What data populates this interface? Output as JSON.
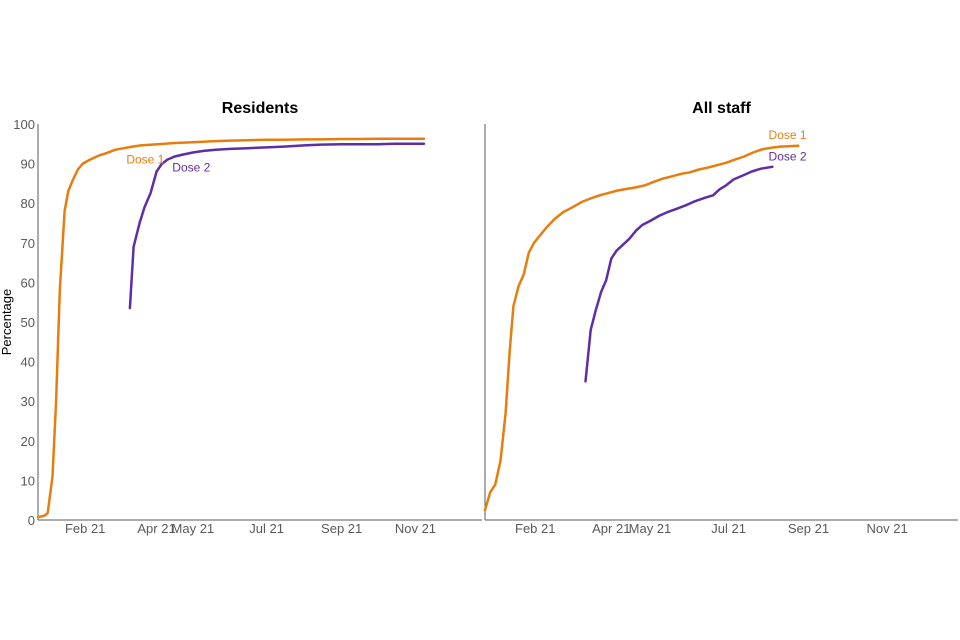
{
  "chart_data": {
    "type": "line",
    "ylabel": "Percentage",
    "ylim": [
      0,
      100
    ],
    "yticks": [
      0,
      10,
      20,
      30,
      40,
      50,
      60,
      70,
      80,
      90,
      100
    ],
    "xticks": [
      {
        "date": "2021-02-01",
        "label": "Feb 21"
      },
      {
        "date": "2021-04-01",
        "label": "Apr 21"
      },
      {
        "date": "2021-05-01",
        "label": "May 21"
      },
      {
        "date": "2021-07-01",
        "label": "Jul 21"
      },
      {
        "date": "2021-09-01",
        "label": "Sep 21"
      },
      {
        "date": "2021-11-01",
        "label": "Nov 21"
      }
    ],
    "xlim": [
      "2020-12-24",
      "2021-12-26"
    ],
    "colors": {
      "dose1": "#E87D0F",
      "dose2": "#5E2EA8"
    },
    "panels": [
      {
        "title": "Residents",
        "series": [
          {
            "name": "Dose 1",
            "color": "#E87D0F",
            "points": [
              [
                "2020-12-24",
                0.7
              ],
              [
                "2020-12-27",
                0.9
              ],
              [
                "2020-12-30",
                1.2
              ],
              [
                "2021-01-01",
                1.8
              ],
              [
                "2021-01-05",
                11.0
              ],
              [
                "2021-01-08",
                30.0
              ],
              [
                "2021-01-11",
                58.0
              ],
              [
                "2021-01-15",
                78.0
              ],
              [
                "2021-01-18",
                83.0
              ],
              [
                "2021-01-22",
                86.0
              ],
              [
                "2021-01-26",
                88.5
              ],
              [
                "2021-01-30",
                90.0
              ],
              [
                "2021-02-05",
                91.0
              ],
              [
                "2021-02-12",
                92.0
              ],
              [
                "2021-02-19",
                92.7
              ],
              [
                "2021-02-26",
                93.5
              ],
              [
                "2021-03-05",
                93.9
              ],
              [
                "2021-03-12",
                94.3
              ],
              [
                "2021-03-19",
                94.6
              ],
              [
                "2021-04-02",
                94.9
              ],
              [
                "2021-04-16",
                95.2
              ],
              [
                "2021-05-01",
                95.4
              ],
              [
                "2021-05-15",
                95.6
              ],
              [
                "2021-06-01",
                95.8
              ],
              [
                "2021-06-15",
                95.9
              ],
              [
                "2021-07-01",
                96.0
              ],
              [
                "2021-07-15",
                96.0
              ],
              [
                "2021-08-01",
                96.1
              ],
              [
                "2021-08-15",
                96.1
              ],
              [
                "2021-09-01",
                96.2
              ],
              [
                "2021-09-15",
                96.2
              ],
              [
                "2021-10-01",
                96.3
              ],
              [
                "2021-10-15",
                96.3
              ],
              [
                "2021-11-01",
                96.3
              ],
              [
                "2021-11-08",
                96.3
              ]
            ]
          },
          {
            "name": "Dose 2",
            "color": "#5E2EA8",
            "points": [
              [
                "2021-03-10",
                53.5
              ],
              [
                "2021-03-13",
                69.0
              ],
              [
                "2021-03-18",
                75.0
              ],
              [
                "2021-03-22",
                79.0
              ],
              [
                "2021-03-27",
                82.5
              ],
              [
                "2021-04-01",
                88.0
              ],
              [
                "2021-04-05",
                89.8
              ],
              [
                "2021-04-10",
                91.0
              ],
              [
                "2021-04-16",
                91.8
              ],
              [
                "2021-04-23",
                92.3
              ],
              [
                "2021-05-01",
                92.8
              ],
              [
                "2021-05-10",
                93.2
              ],
              [
                "2021-05-20",
                93.5
              ],
              [
                "2021-06-01",
                93.7
              ],
              [
                "2021-06-15",
                93.9
              ],
              [
                "2021-07-01",
                94.1
              ],
              [
                "2021-07-15",
                94.3
              ],
              [
                "2021-08-01",
                94.6
              ],
              [
                "2021-08-15",
                94.8
              ],
              [
                "2021-09-01",
                94.9
              ],
              [
                "2021-09-15",
                94.9
              ],
              [
                "2021-10-01",
                94.9
              ],
              [
                "2021-10-15",
                95.0
              ],
              [
                "2021-11-01",
                95.0
              ],
              [
                "2021-11-08",
                95.0
              ]
            ]
          }
        ],
        "labels": [
          {
            "series": "Dose 1",
            "text": "Dose 1",
            "at": [
              "2021-03-07",
              90.0
            ],
            "anchor": "start"
          },
          {
            "series": "Dose 2",
            "text": "Dose 2",
            "at": [
              "2021-04-14",
              88.0
            ],
            "anchor": "start"
          }
        ]
      },
      {
        "title": "All staff",
        "series": [
          {
            "name": "Dose 1",
            "color": "#E87D0F",
            "points": [
              [
                "2020-12-24",
                2.5
              ],
              [
                "2020-12-28",
                7.0
              ],
              [
                "2021-01-01",
                9.0
              ],
              [
                "2021-01-05",
                15.0
              ],
              [
                "2021-01-09",
                27.0
              ],
              [
                "2021-01-12",
                42.0
              ],
              [
                "2021-01-15",
                54.0
              ],
              [
                "2021-01-19",
                59.0
              ],
              [
                "2021-01-23",
                62.0
              ],
              [
                "2021-01-27",
                67.5
              ],
              [
                "2021-01-31",
                70.0
              ],
              [
                "2021-02-05",
                72.0
              ],
              [
                "2021-02-10",
                74.0
              ],
              [
                "2021-02-16",
                76.0
              ],
              [
                "2021-02-23",
                77.8
              ],
              [
                "2021-03-02",
                79.0
              ],
              [
                "2021-03-09",
                80.3
              ],
              [
                "2021-03-16",
                81.2
              ],
              [
                "2021-03-23",
                82.0
              ],
              [
                "2021-03-30",
                82.6
              ],
              [
                "2021-04-06",
                83.2
              ],
              [
                "2021-04-13",
                83.6
              ],
              [
                "2021-04-20",
                84.0
              ],
              [
                "2021-04-27",
                84.5
              ],
              [
                "2021-05-04",
                85.4
              ],
              [
                "2021-05-11",
                86.2
              ],
              [
                "2021-05-18",
                86.8
              ],
              [
                "2021-05-25",
                87.4
              ],
              [
                "2021-06-01",
                87.8
              ],
              [
                "2021-06-08",
                88.5
              ],
              [
                "2021-06-15",
                89.0
              ],
              [
                "2021-06-22",
                89.6
              ],
              [
                "2021-06-29",
                90.2
              ],
              [
                "2021-07-06",
                91.0
              ],
              [
                "2021-07-13",
                91.8
              ],
              [
                "2021-07-20",
                92.8
              ],
              [
                "2021-07-27",
                93.6
              ],
              [
                "2021-08-03",
                94.0
              ],
              [
                "2021-08-10",
                94.3
              ],
              [
                "2021-08-17",
                94.4
              ],
              [
                "2021-08-24",
                94.5
              ]
            ]
          },
          {
            "name": "Dose 2",
            "color": "#5E2EA8",
            "points": [
              [
                "2021-03-12",
                35.0
              ],
              [
                "2021-03-16",
                48.0
              ],
              [
                "2021-03-20",
                53.0
              ],
              [
                "2021-03-24",
                57.5
              ],
              [
                "2021-03-28",
                60.5
              ],
              [
                "2021-04-01",
                66.0
              ],
              [
                "2021-04-05",
                68.0
              ],
              [
                "2021-04-10",
                69.5
              ],
              [
                "2021-04-15",
                71.0
              ],
              [
                "2021-04-20",
                73.0
              ],
              [
                "2021-04-25",
                74.5
              ],
              [
                "2021-05-01",
                75.5
              ],
              [
                "2021-05-08",
                76.8
              ],
              [
                "2021-05-15",
                77.8
              ],
              [
                "2021-05-22",
                78.6
              ],
              [
                "2021-05-29",
                79.5
              ],
              [
                "2021-06-05",
                80.5
              ],
              [
                "2021-06-12",
                81.3
              ],
              [
                "2021-06-19",
                82.0
              ],
              [
                "2021-06-24",
                83.5
              ],
              [
                "2021-06-29",
                84.5
              ],
              [
                "2021-07-05",
                86.0
              ],
              [
                "2021-07-12",
                87.0
              ],
              [
                "2021-07-19",
                88.0
              ],
              [
                "2021-07-26",
                88.7
              ],
              [
                "2021-08-04",
                89.2
              ]
            ]
          }
        ],
        "labels": [
          {
            "series": "Dose 1",
            "text": "Dose 1",
            "at": [
              "2021-08-01",
              96.2
            ],
            "anchor": "start"
          },
          {
            "series": "Dose 2",
            "text": "Dose 2",
            "at": [
              "2021-08-01",
              90.8
            ],
            "anchor": "start"
          }
        ]
      }
    ]
  }
}
